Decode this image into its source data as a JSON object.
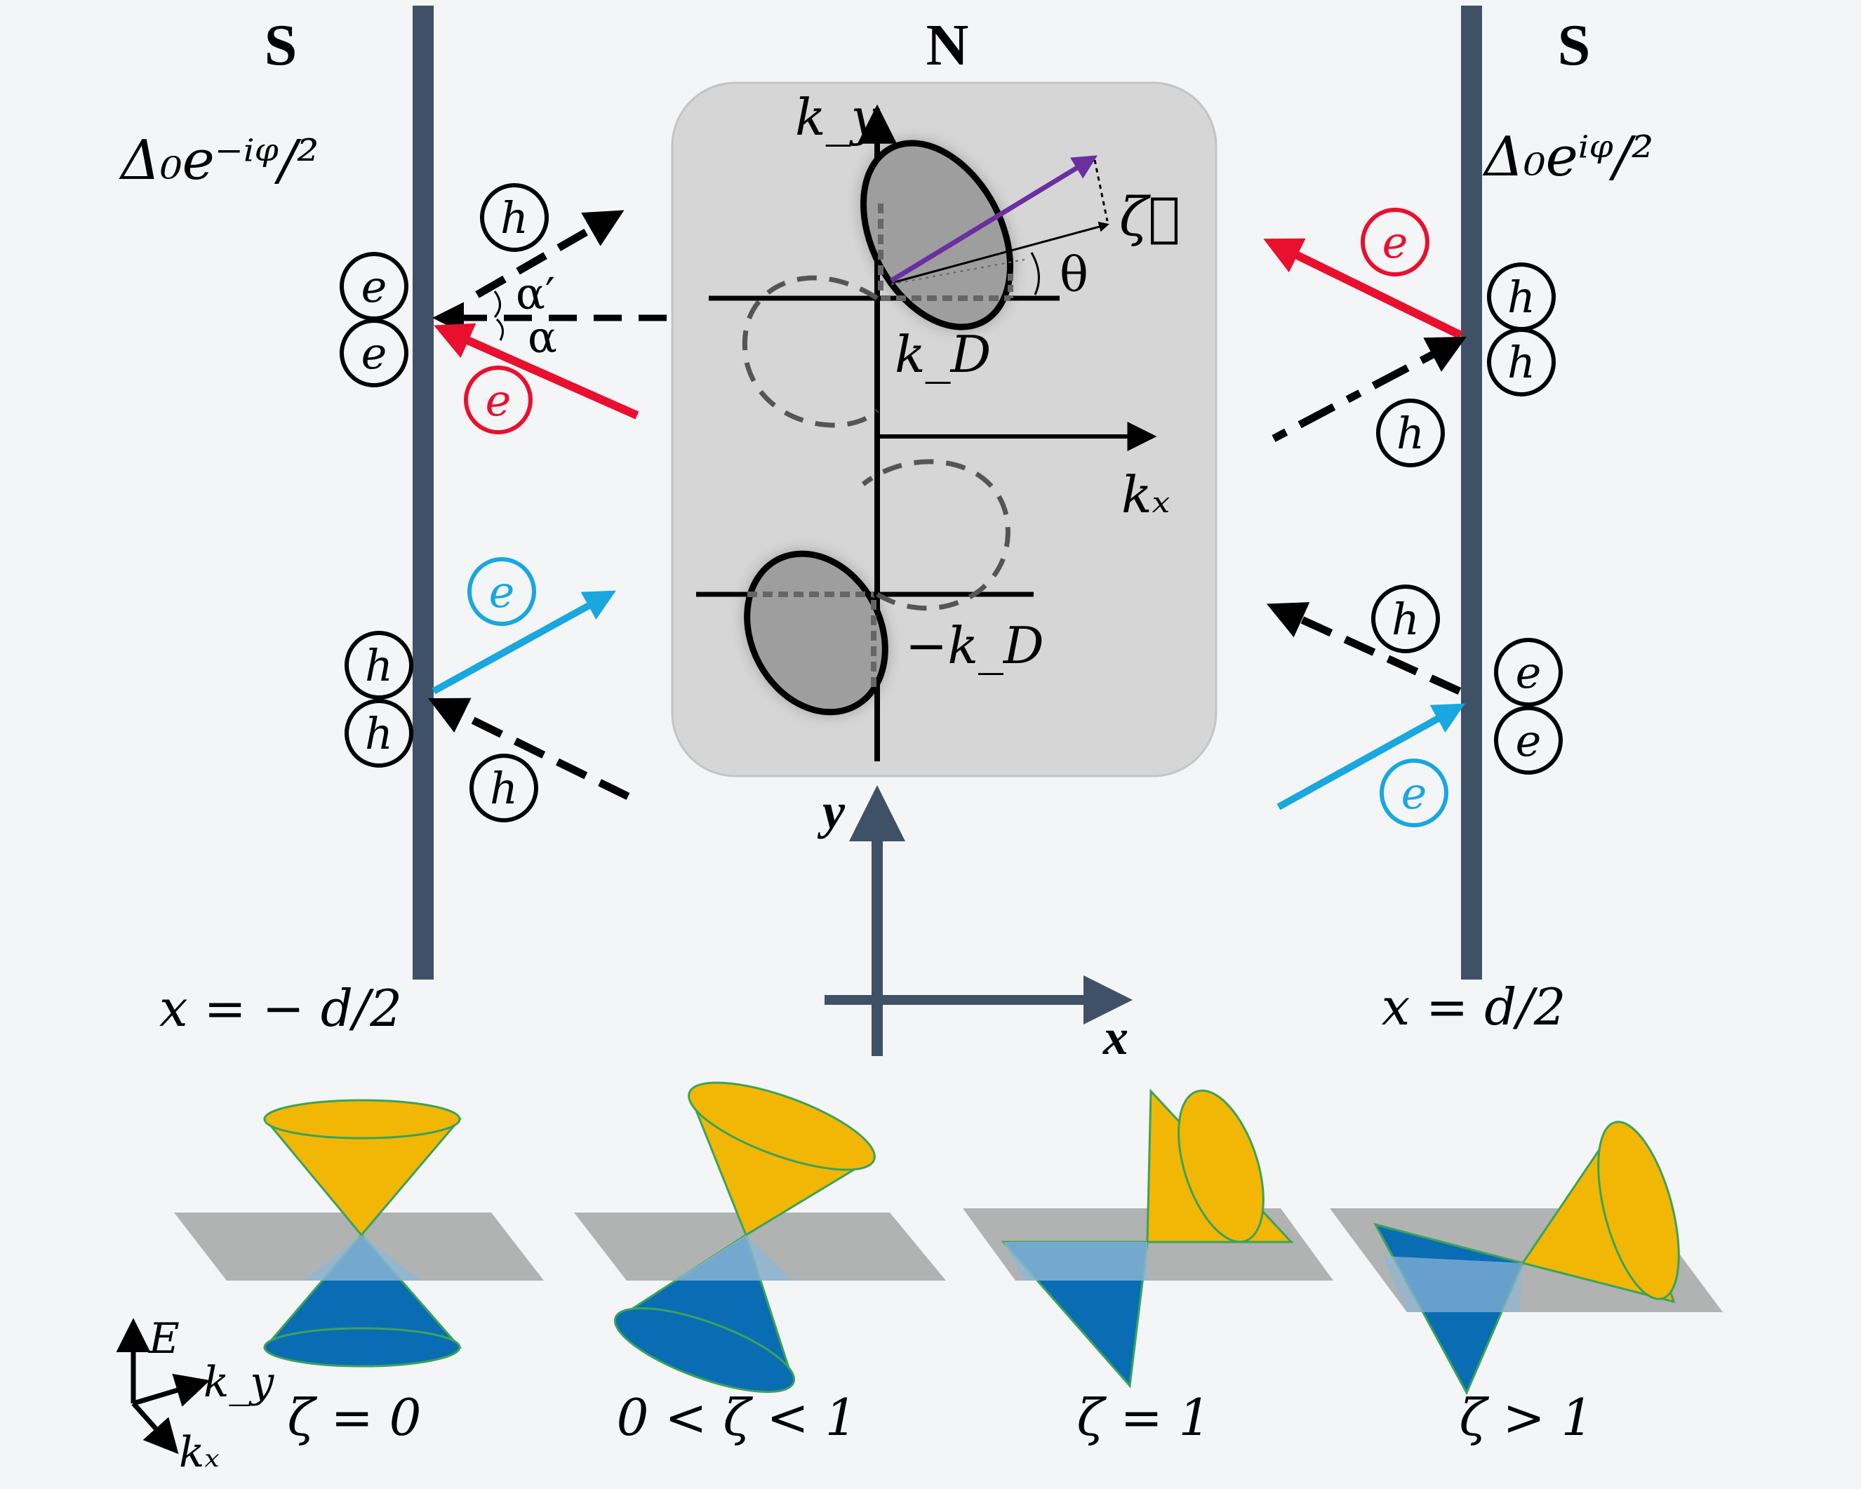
{
  "regions": {
    "left_label": "S",
    "middle_label": "N",
    "right_label": "S"
  },
  "gaps": {
    "left": "Δ₀e⁻ⁱᵠ/²",
    "right": "Δ₀eⁱᵠ/²"
  },
  "interfaces": {
    "left": "x = − d/2",
    "right": "x = d/2"
  },
  "axes": {
    "x": "x",
    "y": "y"
  },
  "momentum": {
    "kx": "kₓ",
    "ky": "k_y",
    "kD": "k_D",
    "minus_kD": "−k_D",
    "zeta_vector": "ζ⃗",
    "theta": "θ"
  },
  "angles": {
    "alpha": "α",
    "alpha_prime": "α′"
  },
  "particles": {
    "electron": "e",
    "hole": "h"
  },
  "cone_labels": [
    "ζ = 0",
    "0 < ζ < 1",
    "ζ = 1",
    "ζ > 1"
  ],
  "energy_axes": {
    "E": "E",
    "ky": "k_y",
    "kx": "kₓ"
  },
  "colors": {
    "electron_incident": "#e8102e",
    "electron_blue": "#19a7df",
    "superconductor_bar": "#3f5167",
    "cone_upper": "#f2b705",
    "cone_lower": "#0a6db4",
    "plane": "#9b9b9b",
    "vector": "#6a2fa0"
  }
}
